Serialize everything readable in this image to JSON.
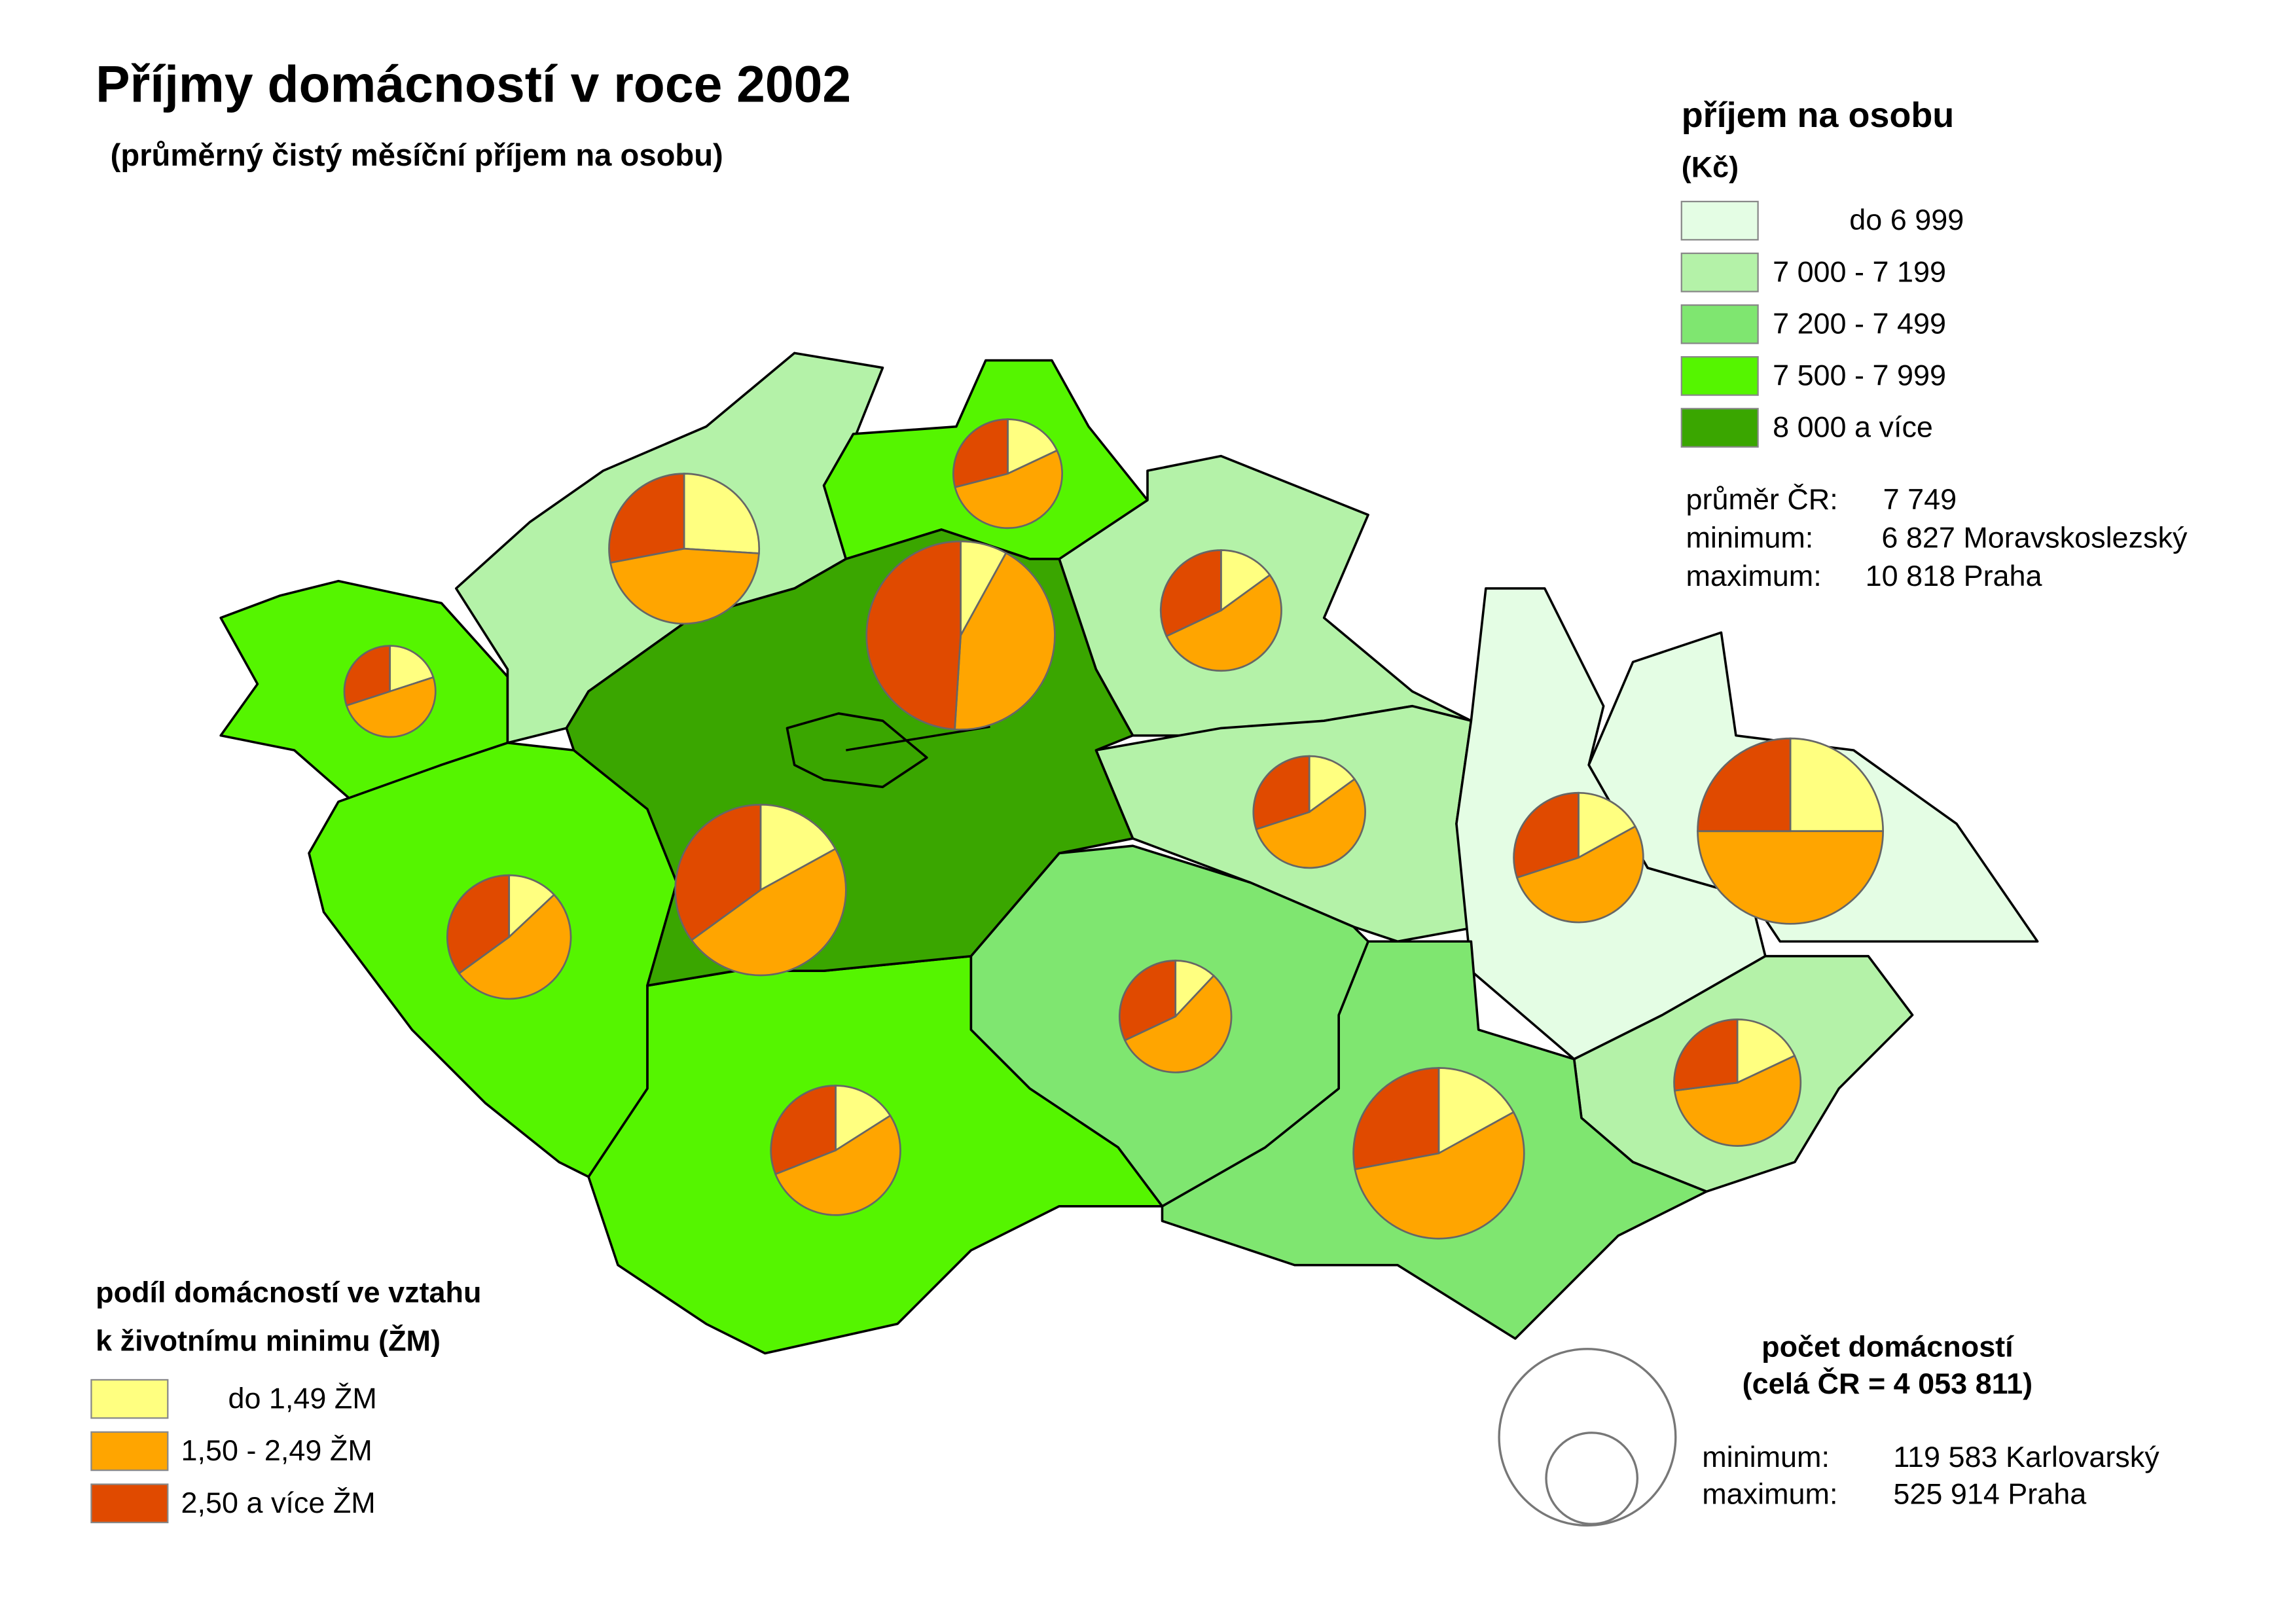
{
  "title": "Příjmy domácností v roce 2002",
  "subtitle": "(průměrný čistý měsíční příjem na osobu)",
  "income_legend": {
    "title": "příjem na osobu",
    "unit": "(Kč)",
    "items": [
      {
        "label": "do 6 999",
        "color": "#e4fde4"
      },
      {
        "label": "7 000 - 7 199",
        "color": "#b4f2a8"
      },
      {
        "label": "7 200 - 7 499",
        "color": "#7fe670"
      },
      {
        "label": "7 500 - 7 999",
        "color": "#55f500"
      },
      {
        "label": "8 000 a více",
        "color": "#3aa600"
      }
    ],
    "stats": [
      {
        "label": "průměr ČR:",
        "value": "7 749"
      },
      {
        "label": "minimum:",
        "value": "6 827 Moravskoslezský"
      },
      {
        "label": "maximum:",
        "value": "10 818 Praha"
      }
    ]
  },
  "share_legend": {
    "title_lines": [
      "podíl domácností ve vztahu",
      "k životnímu minimu (ŽM)"
    ],
    "items": [
      {
        "label": "do 1,49 ŽM",
        "color": "#ffff80"
      },
      {
        "label": "1,50 - 2,49 ŽM",
        "color": "#ffa500"
      },
      {
        "label": "2,50 a více ŽM",
        "color": "#e04a00"
      }
    ]
  },
  "size_legend": {
    "title": "počet domácností",
    "subtitle": "(celá ČR = 4 053 811)",
    "stats": [
      {
        "label": "minimum:",
        "value": "119 583 Karlovarský"
      },
      {
        "label": "maximum:",
        "value": "525 914 Praha"
      }
    ]
  },
  "pies": [
    {
      "values": [
        20,
        50,
        30
      ]
    },
    {
      "values": [
        26,
        46,
        28
      ]
    },
    {
      "values": [
        18,
        53,
        29
      ]
    },
    {
      "values": [
        8,
        43,
        49
      ]
    },
    {
      "values": [
        17,
        48,
        35
      ]
    },
    {
      "values": [
        15,
        53,
        32
      ]
    },
    {
      "values": [
        15,
        55,
        30
      ]
    },
    {
      "values": [
        17,
        53,
        30
      ]
    },
    {
      "values": [
        25,
        50,
        25
      ]
    },
    {
      "values": [
        13,
        52,
        35
      ]
    },
    {
      "values": [
        12,
        56,
        32
      ]
    },
    {
      "values": [
        16,
        53,
        31
      ]
    },
    {
      "values": [
        17,
        55,
        28
      ]
    },
    {
      "values": [
        18,
        55,
        27
      ]
    }
  ]
}
